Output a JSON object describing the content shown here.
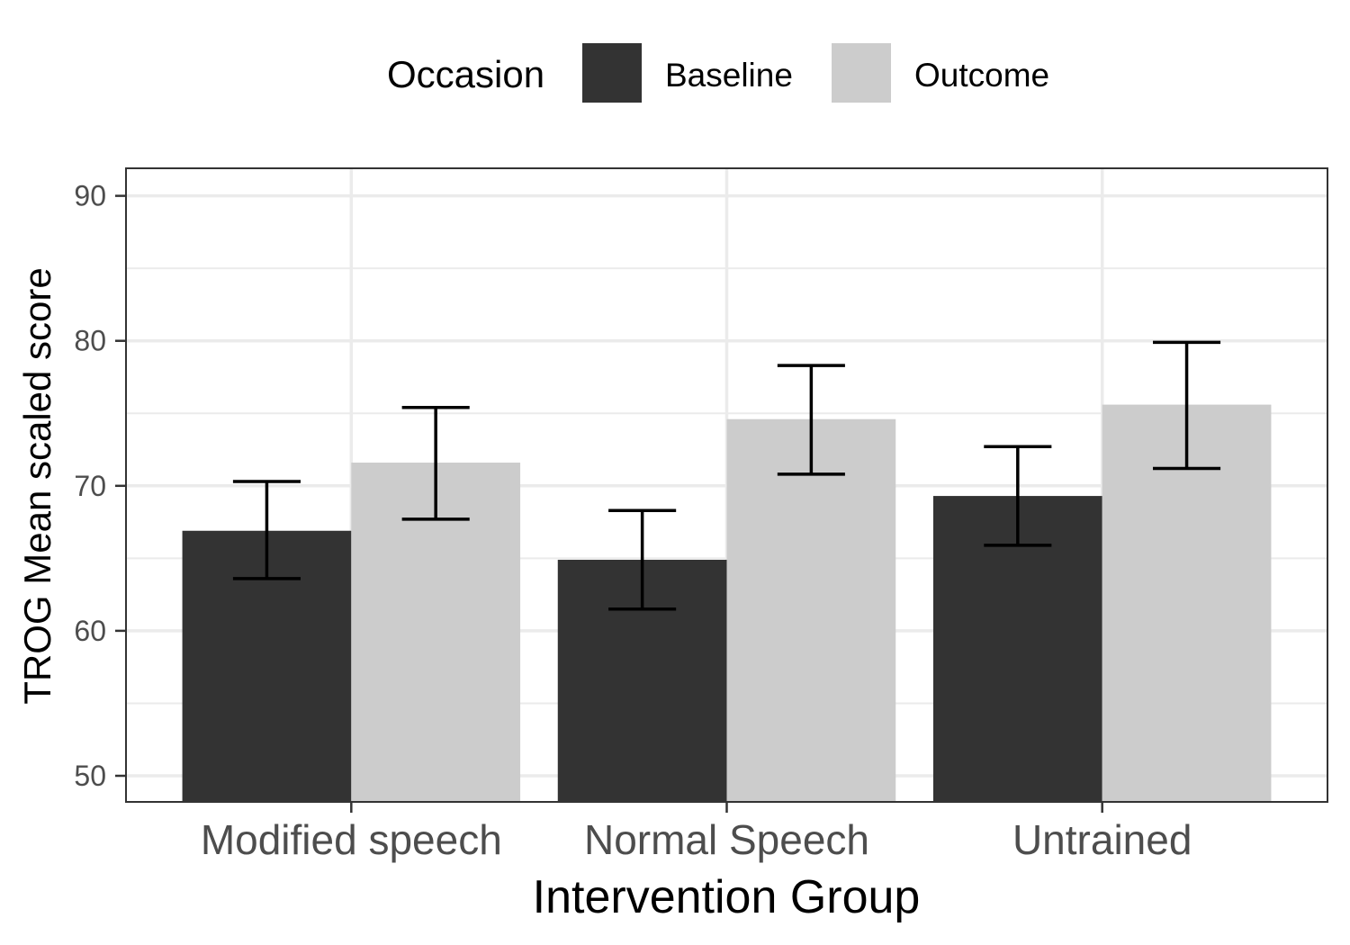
{
  "chart_data": {
    "type": "bar",
    "xlabel": "Intervention Group",
    "ylabel": "TROG Mean scaled score",
    "categories": [
      "Modified speech",
      "Normal Speech",
      "Untrained"
    ],
    "ylim": [
      48.2,
      91.9
    ],
    "yticks": [
      50,
      60,
      70,
      80,
      90
    ],
    "grid": true,
    "legend": {
      "title": "Occasion",
      "position": "top"
    },
    "series": [
      {
        "name": "Baseline",
        "color": "#333333",
        "values": [
          66.9,
          64.9,
          69.3
        ],
        "error_low": [
          63.6,
          61.5,
          65.9
        ],
        "error_high": [
          70.3,
          68.3,
          72.7
        ]
      },
      {
        "name": "Outcome",
        "color": "#cccccc",
        "values": [
          71.6,
          74.6,
          75.6
        ],
        "error_low": [
          67.7,
          70.8,
          71.2
        ],
        "error_high": [
          75.4,
          78.3,
          79.9
        ]
      }
    ]
  }
}
